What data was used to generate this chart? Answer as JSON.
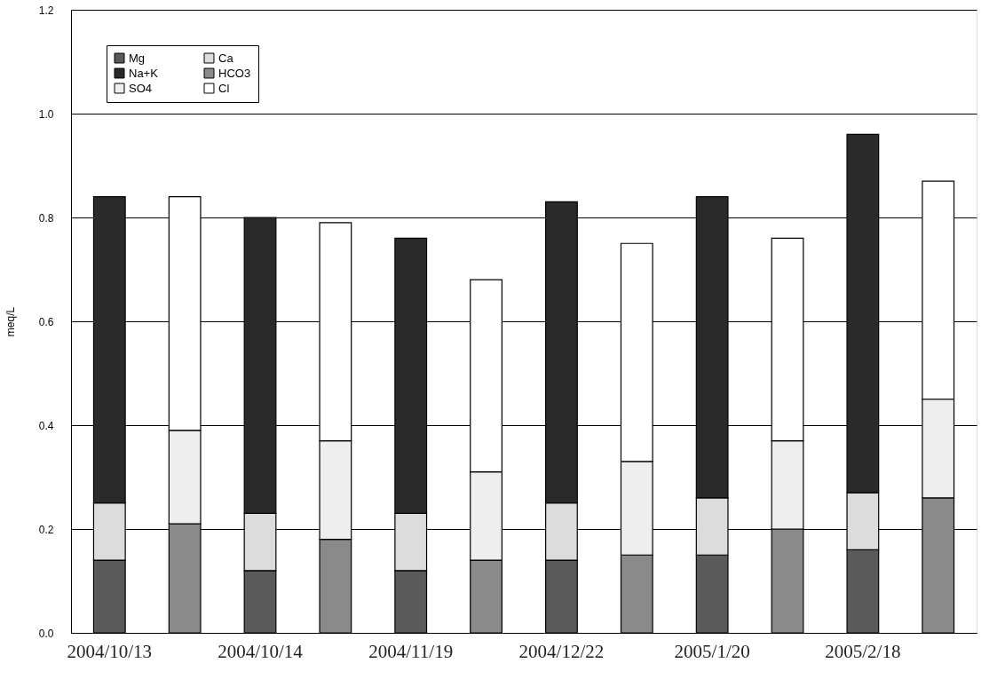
{
  "chart_data": {
    "type": "bar",
    "stacked": true,
    "ylabel": "meq/L",
    "categories": [
      "2004/10/13",
      null,
      "2004/10/14",
      null,
      "2004/11/19",
      null,
      "2004/12/22",
      null,
      "2005/1/20",
      null,
      "2005/2/18",
      null
    ],
    "series": [
      {
        "name": "Mg",
        "color": "#5a5a5a",
        "values": [
          0.14,
          null,
          0.12,
          null,
          0.12,
          null,
          0.14,
          null,
          0.15,
          null,
          0.16,
          null
        ]
      },
      {
        "name": "Ca",
        "color": "#dcdcdc",
        "values": [
          0.11,
          null,
          0.11,
          null,
          0.11,
          null,
          0.11,
          null,
          0.11,
          null,
          0.11,
          null
        ]
      },
      {
        "name": "Na+K",
        "color": "#2a2a2a",
        "values": [
          0.59,
          null,
          0.57,
          null,
          0.53,
          null,
          0.58,
          null,
          0.58,
          null,
          0.69,
          null
        ]
      },
      {
        "name": "HCO3",
        "color": "#8a8a8a",
        "values": [
          null,
          0.21,
          null,
          0.18,
          null,
          0.14,
          null,
          0.15,
          null,
          0.2,
          null,
          0.26
        ]
      },
      {
        "name": "SO4",
        "color": "#eeeeee",
        "values": [
          null,
          0.18,
          null,
          0.19,
          null,
          0.17,
          null,
          0.18,
          null,
          0.17,
          null,
          0.19
        ]
      },
      {
        "name": "Cl",
        "color": "#ffffff",
        "values": [
          null,
          0.45,
          null,
          0.42,
          null,
          0.37,
          null,
          0.42,
          null,
          0.39,
          null,
          0.42
        ]
      }
    ],
    "ylim": [
      0,
      1.2
    ],
    "yticks": [
      {
        "value": 0,
        "label": "0.0"
      },
      {
        "value": 0.2,
        "label": "0.2"
      },
      {
        "value": 0.4,
        "label": "0.4"
      },
      {
        "value": 0.6,
        "label": "0.6"
      },
      {
        "value": 0.8,
        "label": "0.8"
      },
      {
        "value": 1.0,
        "label": "1.0"
      },
      {
        "value": 1.2,
        "label": "1.2"
      }
    ],
    "grid": "y",
    "legend": "top left"
  }
}
